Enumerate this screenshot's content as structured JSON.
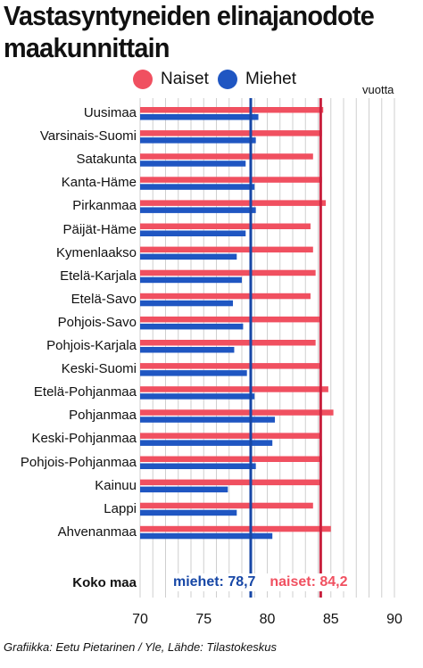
{
  "title": "Vastasyntyneiden elinajanodote maakunnittain",
  "credit": "Grafiikka: Eetu Pietarinen / Yle,  Lähde: Tilastokeskus",
  "colors": {
    "naiset": "#f05060",
    "miehet": "#1f56c2",
    "avg_naiset": "#c81e3c",
    "avg_miehet": "#1747a6"
  },
  "chart_data": {
    "type": "bar",
    "orientation": "horizontal",
    "unit": "vuotta",
    "xlim": [
      70,
      90
    ],
    "xticks": [
      "70",
      "75",
      "80",
      "85",
      "90"
    ],
    "grid": true,
    "legend_position": "top",
    "categories": [
      "Uusimaa",
      "Varsinais-Suomi",
      "Satakunta",
      "Kanta-Häme",
      "Pirkanmaa",
      "Päijät-Häme",
      "Kymenlaakso",
      "Etelä-Karjala",
      "Etelä-Savo",
      "Pohjois-Savo",
      "Pohjois-Karjala",
      "Keski-Suomi",
      "Etelä-Pohjanmaa",
      "Pohjanmaa",
      "Keski-Pohjanmaa",
      "Pohjois-Pohjanmaa",
      "Kainuu",
      "Lappi",
      "Ahvenanmaa"
    ],
    "series": [
      {
        "name": "Naiset",
        "values": [
          84.4,
          84.3,
          83.6,
          84.3,
          84.6,
          83.4,
          83.6,
          83.8,
          83.4,
          84.1,
          83.8,
          84.1,
          84.8,
          85.2,
          84.2,
          84.3,
          84.1,
          83.6,
          85.0
        ]
      },
      {
        "name": "Miehet",
        "values": [
          79.3,
          79.1,
          78.3,
          79.0,
          79.1,
          78.3,
          77.6,
          78.0,
          77.3,
          78.1,
          77.4,
          78.4,
          79.0,
          80.6,
          80.4,
          79.1,
          76.9,
          77.6,
          80.4
        ]
      }
    ],
    "total": {
      "label": "Koko maa",
      "naiset": 84.2,
      "miehet": 78.7,
      "naiset_label": "naiset: 84,2",
      "miehet_label": "miehet: 78,7"
    }
  }
}
